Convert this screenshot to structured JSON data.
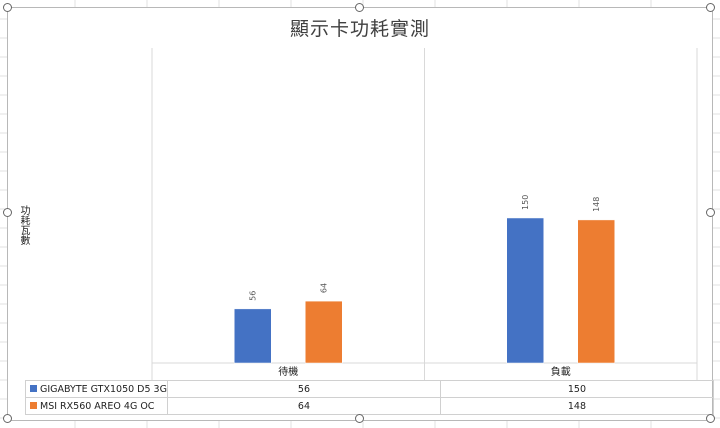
{
  "chart_data": {
    "type": "bar",
    "title": "顯示卡功耗實測",
    "xlabel": "",
    "ylabel": "功耗瓦數",
    "categories": [
      "待機",
      "負載"
    ],
    "series": [
      {
        "name": "GIGABYTE GTX1050 D5 3G",
        "values": [
          56,
          150
        ],
        "color": "#4472c4"
      },
      {
        "name": "MSI RX560 AREO 4G OC",
        "values": [
          64,
          148
        ],
        "color": "#ed7d31"
      }
    ],
    "ylim": [
      0,
      160
    ],
    "grid": false,
    "legend": "data-table"
  }
}
